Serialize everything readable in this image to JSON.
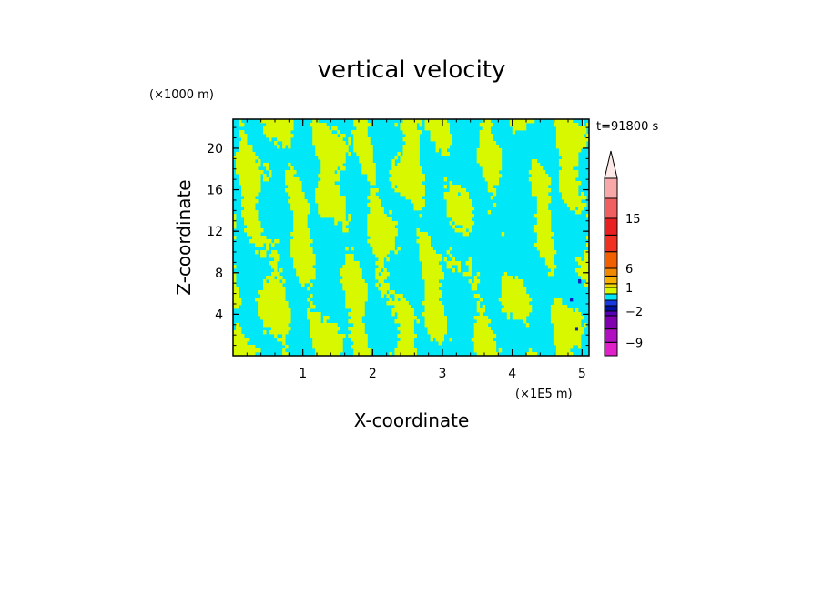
{
  "chart_data": {
    "type": "heatmap",
    "title": "vertical velocity",
    "xlabel": "X-coordinate",
    "ylabel": "Z-coordinate",
    "x_unit": "(×1E5 m)",
    "y_unit": "(×1000 m)",
    "time_label": "t=91800 s",
    "xlim": [
      0,
      5.1
    ],
    "ylim": [
      0,
      22.8
    ],
    "x_ticks": [
      {
        "value": 1,
        "label": "1"
      },
      {
        "value": 2,
        "label": "2"
      },
      {
        "value": 3,
        "label": "3"
      },
      {
        "value": 4,
        "label": "4"
      },
      {
        "value": 5,
        "label": "5"
      }
    ],
    "y_ticks": [
      {
        "value": 4,
        "label": "4"
      },
      {
        "value": 8,
        "label": "8"
      },
      {
        "value": 12,
        "label": "12"
      },
      {
        "value": 16,
        "label": "16"
      },
      {
        "value": 20,
        "label": "20"
      }
    ],
    "field_colors": {
      "negative": "#00e8f8",
      "positive": "#d8f800",
      "strong_negative": "#1020c0"
    },
    "colorbar": {
      "levels": [
        {
          "value": -12,
          "color": "#e020c8"
        },
        {
          "value": -9,
          "color": "#b010c0"
        },
        {
          "value": -6,
          "color": "#8000b0"
        },
        {
          "value": -3,
          "color": "#5800b8"
        },
        {
          "value": -2,
          "color": "#0010a0"
        },
        {
          "value": -1,
          "color": "#1838e0"
        },
        {
          "value": 0,
          "color": "#00e8f8"
        },
        {
          "value": 0.5,
          "color": "#d8f800"
        },
        {
          "value": 1,
          "color": "#f0d800"
        },
        {
          "value": 2,
          "color": "#f8b000"
        },
        {
          "value": 4,
          "color": "#f08800"
        },
        {
          "value": 6,
          "color": "#f06000"
        },
        {
          "value": 9,
          "color": "#f03020"
        },
        {
          "value": 12,
          "color": "#e82020"
        },
        {
          "value": 15,
          "color": "#f06060"
        },
        {
          "value": 18,
          "color": "#f8a8a8"
        },
        {
          "value": 21,
          "color": "#f8c0c0"
        }
      ],
      "over_color": "#fde8e8",
      "labels": [
        {
          "value": 15,
          "label": "15"
        },
        {
          "value": 6,
          "label": "6"
        },
        {
          "value": 1,
          "label": "1"
        },
        {
          "value": -2,
          "label": "−2"
        },
        {
          "value": -9,
          "label": "−9"
        }
      ]
    }
  }
}
